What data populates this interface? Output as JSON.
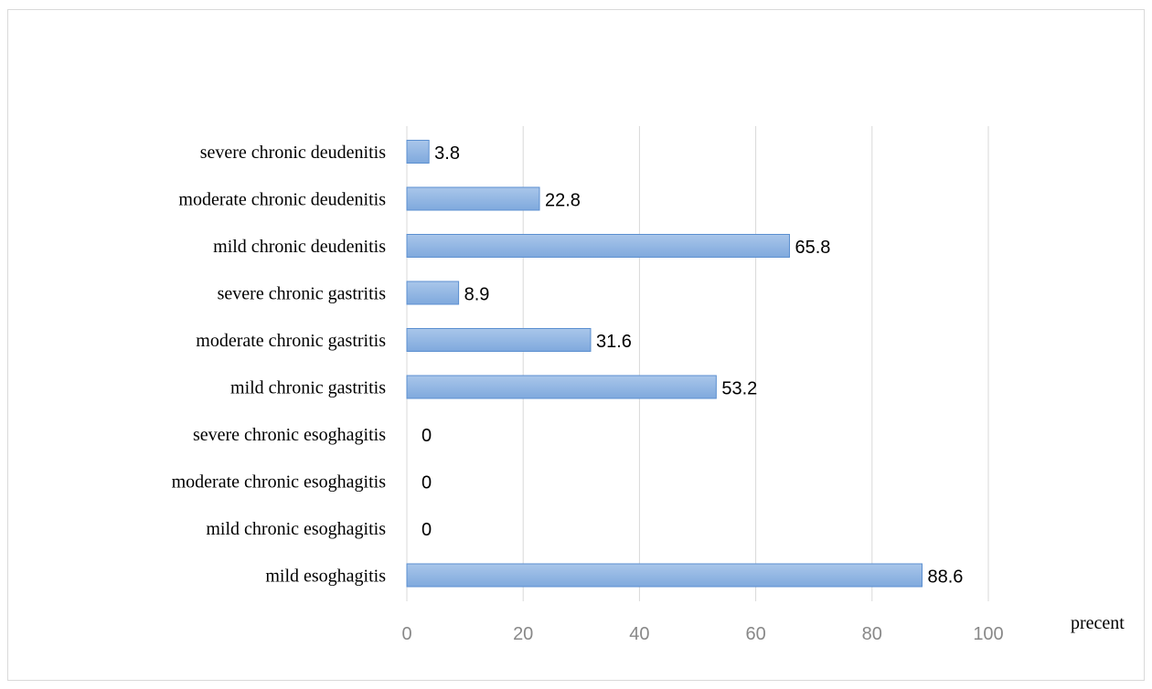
{
  "chart_data": {
    "type": "bar",
    "orientation": "horizontal",
    "categories": [
      "severe chronic deudenitis",
      "moderate chronic deudenitis",
      "mild chronic deudenitis",
      "severe chronic gastritis",
      "moderate chronic gastritis",
      "mild chronic gastritis",
      "severe  chronic esoghagitis",
      "moderate chronic esoghagitis",
      "mild chronic esoghagitis",
      "mild esoghagitis"
    ],
    "values": [
      3.8,
      22.8,
      65.8,
      8.9,
      31.6,
      53.2,
      0,
      0,
      0,
      88.6
    ],
    "data_labels": [
      "3.8",
      "22.8",
      "65.8",
      "8.9",
      "31.6",
      "53.2",
      "0",
      "0",
      "0",
      "88.6"
    ],
    "xlim": [
      0,
      100
    ],
    "x_ticks": [
      0,
      20,
      40,
      60,
      80,
      100
    ],
    "x_tick_labels": [
      "0",
      "20",
      "40",
      "60",
      "80",
      "100"
    ],
    "xlabel": "precent",
    "ylabel": "",
    "title": "",
    "grid": "vertical",
    "legend": "none",
    "bar_color": "#a9c6ea",
    "bar_color_dark": "#7fa9dd",
    "bar_edge_color": "#5b8fd0",
    "gridline_color": "#d9d9d9",
    "tick_label_color": "#888888"
  }
}
